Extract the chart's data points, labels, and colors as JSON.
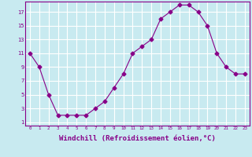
{
  "x": [
    0,
    1,
    2,
    3,
    4,
    5,
    6,
    7,
    8,
    9,
    10,
    11,
    12,
    13,
    14,
    15,
    16,
    17,
    18,
    19,
    20,
    21,
    22,
    23
  ],
  "y": [
    11,
    9,
    5,
    2,
    2,
    2,
    2,
    3,
    4,
    6,
    8,
    11,
    12,
    13,
    16,
    17,
    18,
    18,
    17,
    15,
    11,
    9,
    8,
    8
  ],
  "line_color": "#880088",
  "marker": "D",
  "marker_size": 2.5,
  "bg_color": "#c8eaf0",
  "grid_color": "#ffffff",
  "xlabel": "Windchill (Refroidissement éolien,°C)",
  "xlabel_fontsize": 6.5,
  "yticks": [
    1,
    3,
    5,
    7,
    9,
    11,
    13,
    15,
    17
  ],
  "xticks": [
    0,
    1,
    2,
    3,
    4,
    5,
    6,
    7,
    8,
    9,
    10,
    11,
    12,
    13,
    14,
    15,
    16,
    17,
    18,
    19,
    20,
    21,
    22,
    23
  ],
  "ylim": [
    0.5,
    18.5
  ],
  "xlim": [
    -0.5,
    23.5
  ]
}
